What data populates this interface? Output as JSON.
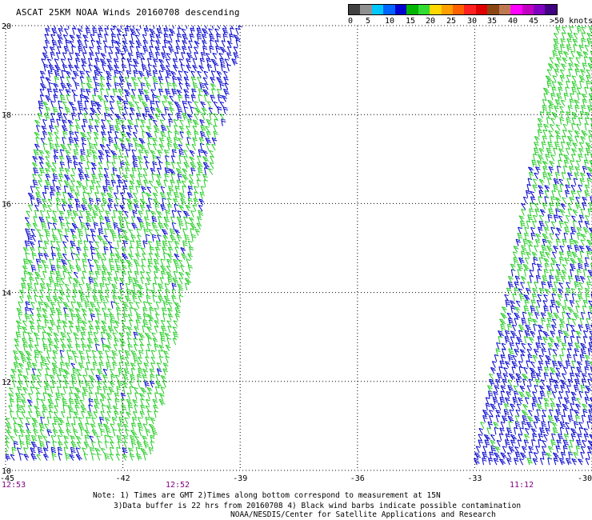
{
  "title": "ASCAT 25KM NOAA Winds 20160708 descending",
  "legend": {
    "labels": [
      "0",
      "5",
      "10",
      "15",
      "20",
      "25",
      "30",
      "35",
      "40",
      "45",
      ">50 knots"
    ],
    "colors": [
      "#404040",
      "#909090",
      "#00c8ff",
      "#0064ff",
      "#0000d0",
      "#00b400",
      "#32dc32",
      "#ffd700",
      "#ffa000",
      "#ff6000",
      "#ff2020",
      "#e00000",
      "#8b4513",
      "#c07850",
      "#ff00ff",
      "#c000c0",
      "#8000c0",
      "#400080"
    ]
  },
  "map": {
    "lon_labels": [
      "-45",
      "-42",
      "-39",
      "-36",
      "-33",
      "-30"
    ],
    "lat_labels": [
      "20",
      "18",
      "16",
      "14",
      "12",
      "10"
    ],
    "lon_range": [
      -45,
      -30
    ],
    "lat_range": [
      10,
      20
    ],
    "grid": "dotted",
    "times": [
      {
        "text": "12:53",
        "lon": -45
      },
      {
        "text": "12:52",
        "lon": -40.6
      },
      {
        "text": "11:12",
        "lon": -31.8
      }
    ],
    "time_color": "#800080",
    "swath_colors": {
      "blue": "#0000cc",
      "green": "#22cc22"
    }
  },
  "notes": {
    "line1": "Note: 1) Times are GMT 2)Times along bottom correspond to measurement at 15N",
    "line2": "3)Data buffer is 22 hrs from 20160708 4) Black wind barbs indicate possible contamination",
    "line3": "NOAA/NESDIS/Center for Satellite Applications and Research"
  }
}
